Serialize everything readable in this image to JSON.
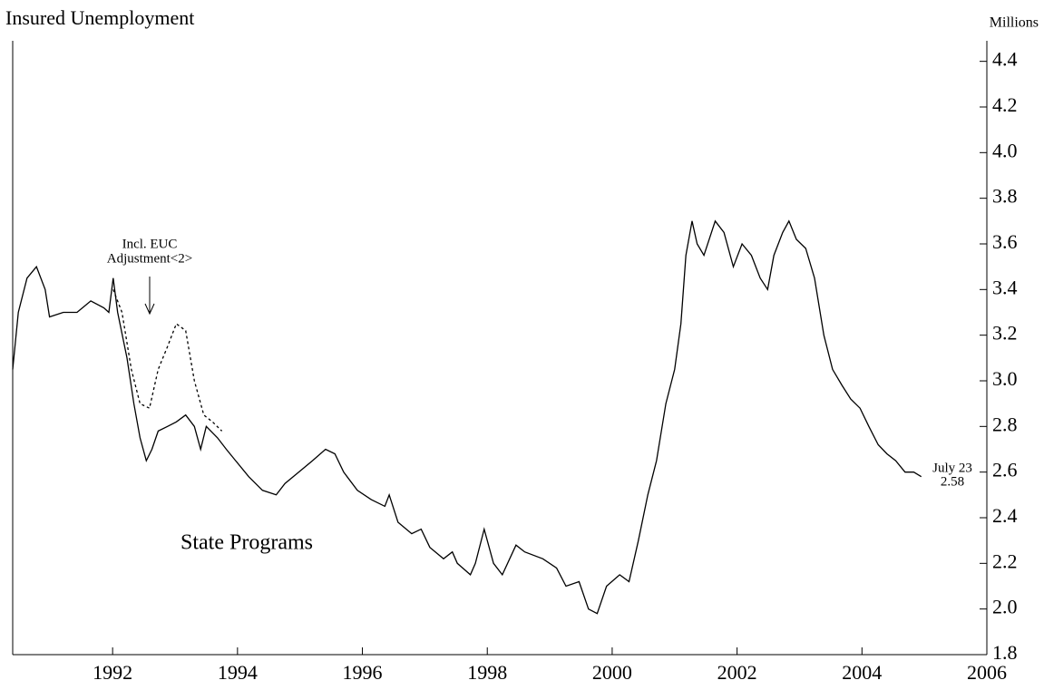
{
  "chart_data": {
    "type": "line",
    "title": "Insured Unemployment",
    "y_axis_label": "Millions",
    "xlim": [
      1990.4,
      2006
    ],
    "xticks": [
      1992,
      1994,
      1996,
      1998,
      2000,
      2002,
      2004,
      2006
    ],
    "ylim": [
      1.8,
      4.49
    ],
    "yticks": [
      {
        "value": 1.8,
        "label": "1.8"
      },
      {
        "value": 2.0,
        "label": "2.0"
      },
      2.2,
      2.4,
      2.6,
      2.8,
      {
        "value": 3.0,
        "label": "3.0"
      },
      3.2,
      3.4,
      3.6,
      3.8,
      {
        "value": 4.0,
        "label": "4.0"
      },
      4.2,
      4.4
    ],
    "series": [
      {
        "name": "State Programs",
        "color": "#000000",
        "style": "solid",
        "x": [
          1990.4,
          1990.49,
          1990.63,
          1990.78,
          1990.92,
          1990.99,
          1991.21,
          1991.43,
          1991.65,
          1991.86,
          1991.94,
          1992.01,
          1992.08,
          1992.23,
          1992.34,
          1992.44,
          1992.54,
          1992.63,
          1992.73,
          1992.88,
          1993.02,
          1993.17,
          1993.31,
          1993.41,
          1993.5,
          1993.68,
          1993.82,
          1993.97,
          1994.18,
          1994.4,
          1994.62,
          1994.76,
          1994.98,
          1995.2,
          1995.41,
          1995.56,
          1995.7,
          1995.92,
          1996.14,
          1996.36,
          1996.43,
          1996.57,
          1996.79,
          1996.94,
          1997.08,
          1997.3,
          1997.44,
          1997.52,
          1997.73,
          1997.81,
          1997.95,
          1998.1,
          1998.24,
          1998.46,
          1998.6,
          1998.89,
          1999.11,
          1999.26,
          1999.47,
          1999.62,
          1999.76,
          1999.91,
          2000.12,
          2000.27,
          2000.42,
          2000.57,
          2000.71,
          2000.86,
          2001.0,
          2001.1,
          2001.18,
          2001.28,
          2001.36,
          2001.47,
          2001.65,
          2001.79,
          2001.94,
          2002.08,
          2002.23,
          2002.37,
          2002.49,
          2002.59,
          2002.73,
          2002.83,
          2002.95,
          2003.1,
          2003.24,
          2003.39,
          2003.53,
          2003.68,
          2003.82,
          2003.97,
          2004.11,
          2004.26,
          2004.4,
          2004.54,
          2004.69,
          2004.83,
          2004.95
        ],
        "values": [
          3.05,
          3.3,
          3.45,
          3.5,
          3.4,
          3.28,
          3.3,
          3.3,
          3.35,
          3.32,
          3.3,
          3.45,
          3.3,
          3.1,
          2.9,
          2.75,
          2.65,
          2.7,
          2.78,
          2.8,
          2.82,
          2.85,
          2.8,
          2.7,
          2.8,
          2.75,
          2.7,
          2.65,
          2.58,
          2.52,
          2.5,
          2.55,
          2.6,
          2.65,
          2.7,
          2.68,
          2.6,
          2.52,
          2.48,
          2.45,
          2.5,
          2.38,
          2.33,
          2.35,
          2.27,
          2.22,
          2.25,
          2.2,
          2.15,
          2.2,
          2.35,
          2.2,
          2.15,
          2.28,
          2.25,
          2.22,
          2.18,
          2.1,
          2.12,
          2.0,
          1.98,
          2.1,
          2.15,
          2.12,
          2.3,
          2.5,
          2.65,
          2.9,
          3.05,
          3.25,
          3.55,
          3.7,
          3.6,
          3.55,
          3.7,
          3.65,
          3.5,
          3.6,
          3.55,
          3.45,
          3.4,
          3.55,
          3.65,
          3.7,
          3.62,
          3.58,
          3.45,
          3.2,
          3.05,
          2.98,
          2.92,
          2.88,
          2.8,
          2.72,
          2.68,
          2.65,
          2.6,
          2.6,
          2.58
        ]
      },
      {
        "name": "Incl. EUC Adjustment<2>",
        "color": "#000000",
        "style": "dashed",
        "x": [
          1992.01,
          1992.15,
          1992.3,
          1992.44,
          1992.59,
          1992.73,
          1992.88,
          1993.02,
          1993.17,
          1993.31,
          1993.46,
          1993.6,
          1993.75
        ],
        "values": [
          3.4,
          3.3,
          3.05,
          2.9,
          2.88,
          3.05,
          3.15,
          3.25,
          3.22,
          3.0,
          2.85,
          2.82,
          2.78
        ]
      }
    ],
    "annotations": {
      "euc_line1": "Incl. EUC",
      "euc_line2": "Adjustment<2>",
      "state": "State Programs",
      "last_date": "July 23",
      "last_value": "2.58"
    }
  }
}
